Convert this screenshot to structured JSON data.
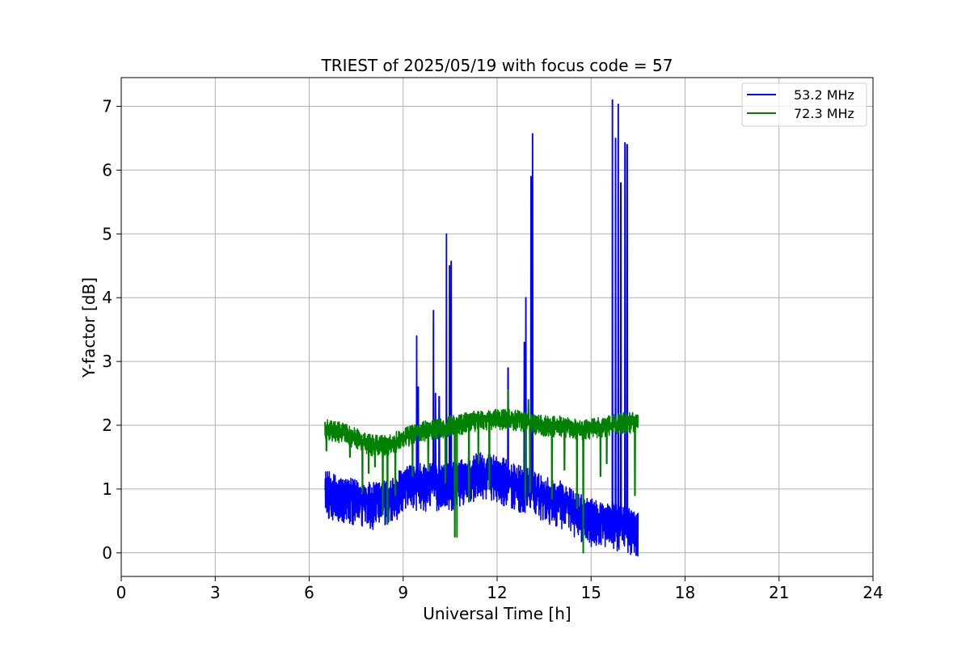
{
  "chart_data": {
    "type": "line",
    "title": "TRIEST of 2025/05/19 with focus code = 57",
    "xlabel": "Universal Time [h]",
    "ylabel": "Y-factor [dB]",
    "xlim": [
      0,
      24
    ],
    "ylim": [
      -0.37,
      7.45
    ],
    "xticks": [
      0,
      3,
      6,
      9,
      12,
      15,
      18,
      21,
      24
    ],
    "yticks": [
      0,
      1,
      2,
      3,
      4,
      5,
      6,
      7
    ],
    "grid": true,
    "legend_position": "top-right",
    "series": [
      {
        "name": "53.2 MHz",
        "color": "#0000ff",
        "start": 6.5,
        "end": 16.5,
        "base": [
          [
            6.5,
            1.0
          ],
          [
            7.0,
            0.9
          ],
          [
            7.5,
            0.85
          ],
          [
            8.0,
            0.8
          ],
          [
            8.5,
            0.85
          ],
          [
            9.0,
            1.05
          ],
          [
            9.5,
            1.1
          ],
          [
            10.0,
            1.1
          ],
          [
            10.5,
            1.1
          ],
          [
            11.0,
            1.2
          ],
          [
            11.5,
            1.3
          ],
          [
            12.0,
            1.25
          ],
          [
            12.5,
            1.1
          ],
          [
            13.0,
            1.05
          ],
          [
            13.5,
            0.9
          ],
          [
            14.0,
            0.85
          ],
          [
            14.5,
            0.65
          ],
          [
            15.0,
            0.55
          ],
          [
            15.5,
            0.5
          ],
          [
            16.0,
            0.45
          ],
          [
            16.5,
            0.4
          ]
        ],
        "noise": [
          0.3,
          0.45
        ],
        "spikes": [
          [
            9.43,
            3.4
          ],
          [
            9.48,
            2.6
          ],
          [
            9.97,
            3.8
          ],
          [
            10.03,
            2.5
          ],
          [
            10.15,
            2.45
          ],
          [
            10.38,
            5.0
          ],
          [
            10.48,
            4.5
          ],
          [
            10.53,
            4.57
          ],
          [
            12.35,
            2.9
          ],
          [
            12.87,
            3.3
          ],
          [
            12.92,
            4.0
          ],
          [
            13.08,
            5.9
          ],
          [
            13.13,
            6.57
          ],
          [
            15.68,
            7.1
          ],
          [
            15.78,
            6.5
          ],
          [
            15.87,
            7.03
          ],
          [
            15.95,
            5.8
          ],
          [
            16.08,
            6.43
          ],
          [
            16.15,
            6.4
          ]
        ]
      },
      {
        "name": "72.3 MHz",
        "color": "#008000",
        "start": 6.5,
        "end": 16.5,
        "base": [
          [
            6.5,
            1.95
          ],
          [
            7.0,
            1.9
          ],
          [
            7.5,
            1.8
          ],
          [
            8.0,
            1.7
          ],
          [
            8.5,
            1.7
          ],
          [
            9.0,
            1.8
          ],
          [
            9.5,
            1.9
          ],
          [
            10.0,
            1.95
          ],
          [
            10.5,
            2.0
          ],
          [
            11.0,
            2.05
          ],
          [
            11.5,
            2.1
          ],
          [
            12.0,
            2.1
          ],
          [
            12.5,
            2.1
          ],
          [
            13.0,
            2.05
          ],
          [
            13.5,
            2.0
          ],
          [
            14.0,
            2.0
          ],
          [
            14.5,
            1.95
          ],
          [
            15.0,
            1.95
          ],
          [
            15.5,
            2.0
          ],
          [
            16.0,
            2.05
          ],
          [
            16.5,
            2.05
          ]
        ],
        "noise": [
          0.15,
          0.18
        ],
        "spikes": [
          [
            12.35,
            2.55
          ],
          [
            13.0,
            2.4
          ]
        ],
        "dips": [
          [
            6.55,
            1.6
          ],
          [
            7.3,
            1.5
          ],
          [
            7.7,
            0.95
          ],
          [
            7.9,
            1.25
          ],
          [
            8.1,
            1.35
          ],
          [
            8.35,
            0.6
          ],
          [
            8.5,
            0.45
          ],
          [
            8.75,
            0.9
          ],
          [
            9.3,
            1.2
          ],
          [
            9.8,
            1.3
          ],
          [
            10.35,
            1.1
          ],
          [
            10.65,
            0.25
          ],
          [
            10.72,
            0.25
          ],
          [
            11.1,
            0.8
          ],
          [
            11.4,
            1.4
          ],
          [
            11.75,
            1.0
          ],
          [
            12.9,
            0.85
          ],
          [
            13.05,
            0.95
          ],
          [
            13.75,
            0.85
          ],
          [
            14.15,
            1.3
          ],
          [
            14.55,
            0.7
          ],
          [
            14.75,
            0.0
          ],
          [
            15.3,
            1.2
          ],
          [
            15.5,
            1.4
          ],
          [
            16.4,
            0.9
          ]
        ]
      }
    ]
  }
}
